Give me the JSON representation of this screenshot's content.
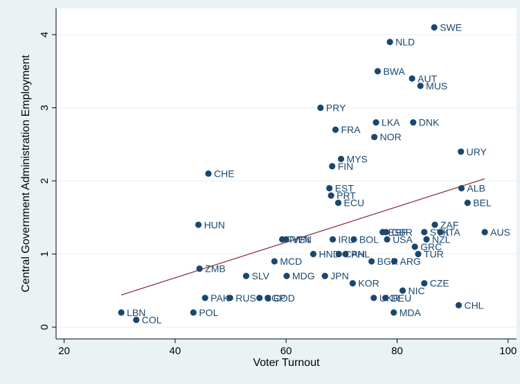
{
  "chart_data": {
    "type": "scatter",
    "xlabel": "Voter Turnout",
    "ylabel": "Central Government Administration Employment",
    "xlim": [
      20,
      100
    ],
    "ylim": [
      0,
      4
    ],
    "xticks": [
      20,
      40,
      60,
      80,
      100
    ],
    "yticks": [
      0,
      1,
      2,
      3,
      4
    ],
    "grid": "horizontal",
    "colors": {
      "marker": "#1a476f",
      "fit_line": "#90353b",
      "plot_bg": "#ffffff",
      "outer_bg": "#eaf2f3"
    },
    "fit_line": {
      "x": [
        30.3,
        95.8
      ],
      "y": [
        0.44,
        2.03
      ]
    },
    "points": [
      {
        "label": "SWE",
        "x": 86.7,
        "y": 4.1
      },
      {
        "label": "NLD",
        "x": 78.7,
        "y": 3.9
      },
      {
        "label": "BWA",
        "x": 76.5,
        "y": 3.5
      },
      {
        "label": "AUT",
        "x": 82.7,
        "y": 3.4
      },
      {
        "label": "MUS",
        "x": 84.2,
        "y": 3.3
      },
      {
        "label": "PRY",
        "x": 66.2,
        "y": 3.0
      },
      {
        "label": "LKA",
        "x": 76.2,
        "y": 2.8
      },
      {
        "label": "DNK",
        "x": 82.9,
        "y": 2.8
      },
      {
        "label": "FRA",
        "x": 68.9,
        "y": 2.7
      },
      {
        "label": "NOR",
        "x": 75.9,
        "y": 2.6
      },
      {
        "label": "URY",
        "x": 91.5,
        "y": 2.4
      },
      {
        "label": "MYS",
        "x": 69.9,
        "y": 2.3
      },
      {
        "label": "FIN",
        "x": 68.3,
        "y": 2.2
      },
      {
        "label": "CHE",
        "x": 46.0,
        "y": 2.1
      },
      {
        "label": "EST",
        "x": 67.8,
        "y": 1.9
      },
      {
        "label": "ALB",
        "x": 91.6,
        "y": 1.9
      },
      {
        "label": "PRT",
        "x": 68.1,
        "y": 1.8
      },
      {
        "label": "ECU",
        "x": 69.4,
        "y": 1.7
      },
      {
        "label": "BEL",
        "x": 92.7,
        "y": 1.7
      },
      {
        "label": "HUN",
        "x": 44.2,
        "y": 1.4
      },
      {
        "label": "ZAF",
        "x": 86.8,
        "y": 1.4
      },
      {
        "label": "ESP",
        "x": 77.4,
        "y": 1.3
      },
      {
        "label": "GBR",
        "x": 78.0,
        "y": 1.3
      },
      {
        "label": "SVK",
        "x": 84.9,
        "y": 1.3
      },
      {
        "label": "ITA",
        "x": 87.8,
        "y": 1.3
      },
      {
        "label": "AUS",
        "x": 95.8,
        "y": 1.3
      },
      {
        "label": "TWN",
        "x": 59.3,
        "y": 1.2
      },
      {
        "label": "VEN",
        "x": 60.0,
        "y": 1.2
      },
      {
        "label": "IRL",
        "x": 68.4,
        "y": 1.2
      },
      {
        "label": "BOL",
        "x": 72.2,
        "y": 1.2
      },
      {
        "label": "USA",
        "x": 78.2,
        "y": 1.2
      },
      {
        "label": "NZL",
        "x": 85.3,
        "y": 1.2
      },
      {
        "label": "GRC",
        "x": 83.2,
        "y": 1.1
      },
      {
        "label": "HND",
        "x": 64.9,
        "y": 1.0
      },
      {
        "label": "CAN",
        "x": 69.5,
        "y": 1.0
      },
      {
        "label": "PHL",
        "x": 70.7,
        "y": 1.0
      },
      {
        "label": "TUR",
        "x": 83.8,
        "y": 1.0
      },
      {
        "label": "MCD",
        "x": 57.9,
        "y": 0.9
      },
      {
        "label": "BGR",
        "x": 75.4,
        "y": 0.9
      },
      {
        "label": "ARG",
        "x": 79.5,
        "y": 0.9
      },
      {
        "label": "ZMB",
        "x": 44.4,
        "y": 0.8
      },
      {
        "label": "SLV",
        "x": 52.8,
        "y": 0.7
      },
      {
        "label": "MDG",
        "x": 60.1,
        "y": 0.7
      },
      {
        "label": "JPN",
        "x": 67.0,
        "y": 0.7
      },
      {
        "label": "KOR",
        "x": 72.0,
        "y": 0.6
      },
      {
        "label": "CZE",
        "x": 84.9,
        "y": 0.6
      },
      {
        "label": "NIC",
        "x": 81.0,
        "y": 0.5
      },
      {
        "label": "PAK",
        "x": 45.4,
        "y": 0.4
      },
      {
        "label": "RUS",
        "x": 49.9,
        "y": 0.4
      },
      {
        "label": "SGP",
        "x": 55.2,
        "y": 0.4
      },
      {
        "label": "COD",
        "x": 56.7,
        "y": 0.4
      },
      {
        "label": "UKR",
        "x": 75.8,
        "y": 0.4
      },
      {
        "label": "DEU",
        "x": 77.9,
        "y": 0.4
      },
      {
        "label": "CHL",
        "x": 91.1,
        "y": 0.3
      },
      {
        "label": "LBN",
        "x": 30.3,
        "y": 0.2
      },
      {
        "label": "POL",
        "x": 43.3,
        "y": 0.2
      },
      {
        "label": "MDA",
        "x": 79.4,
        "y": 0.2
      },
      {
        "label": "COL",
        "x": 33.0,
        "y": 0.1
      }
    ]
  }
}
